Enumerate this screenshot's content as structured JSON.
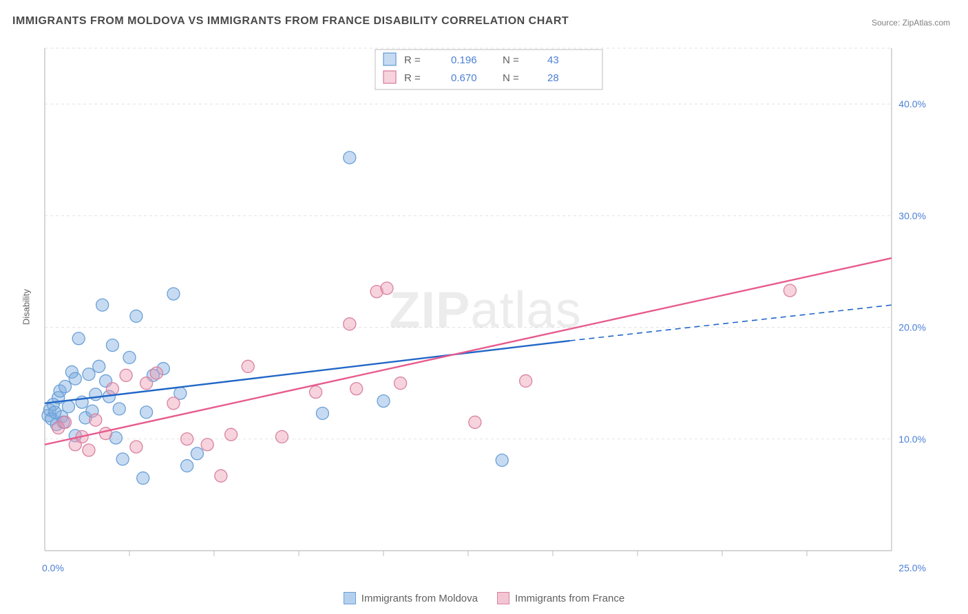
{
  "title": "IMMIGRANTS FROM MOLDOVA VS IMMIGRANTS FROM FRANCE DISABILITY CORRELATION CHART",
  "source_prefix": "Source: ",
  "source_name": "ZipAtlas.com",
  "ylabel": "Disability",
  "watermark_bold": "ZIP",
  "watermark_rest": "atlas",
  "chart": {
    "type": "scatter",
    "xlim": [
      0,
      25
    ],
    "ylim": [
      0,
      45
    ],
    "x_ticks": [
      0,
      25
    ],
    "x_tick_labels": [
      "0.0%",
      "25.0%"
    ],
    "x_minor_ticks": [
      2.5,
      5.0,
      7.5,
      10.0,
      12.5,
      15.0,
      17.5,
      20.0,
      22.5
    ],
    "y_ticks": [
      10,
      20,
      30,
      40
    ],
    "y_tick_labels": [
      "10.0%",
      "20.0%",
      "30.0%",
      "40.0%"
    ],
    "grid_color": "#e2e2e2",
    "axis_color": "#bdbdbd",
    "tick_label_color": "#4a7fd6",
    "tick_label_fontsize": 14,
    "background": "#ffffff",
    "marker_radius": 9,
    "marker_stroke_width": 1.3,
    "series": [
      {
        "name": "Immigrants from Moldova",
        "fill": "rgba(120,170,225,0.42)",
        "stroke": "#6a9fd6",
        "R": "0.196",
        "N": "43",
        "trend": {
          "x1": 0,
          "y1": 13.2,
          "x2": 15.5,
          "y2": 18.8,
          "color": "#2166c7",
          "width": 2.4,
          "ext_x2": 25,
          "ext_y2": 22.0,
          "ext_dash": "8,6"
        },
        "points": [
          [
            0.1,
            12.1
          ],
          [
            0.15,
            12.6
          ],
          [
            0.2,
            11.8
          ],
          [
            0.25,
            13.1
          ],
          [
            0.3,
            12.4
          ],
          [
            0.35,
            11.3
          ],
          [
            0.4,
            13.7
          ],
          [
            0.45,
            14.3
          ],
          [
            0.5,
            12.0
          ],
          [
            0.55,
            11.5
          ],
          [
            0.6,
            14.7
          ],
          [
            0.7,
            12.9
          ],
          [
            0.8,
            16.0
          ],
          [
            0.9,
            15.4
          ],
          [
            1.0,
            19.0
          ],
          [
            1.1,
            13.3
          ],
          [
            1.2,
            11.9
          ],
          [
            1.3,
            15.8
          ],
          [
            1.4,
            12.5
          ],
          [
            1.5,
            14.0
          ],
          [
            1.6,
            16.5
          ],
          [
            1.7,
            22.0
          ],
          [
            1.8,
            15.2
          ],
          [
            1.9,
            13.8
          ],
          [
            2.0,
            18.4
          ],
          [
            2.1,
            10.1
          ],
          [
            2.2,
            12.7
          ],
          [
            2.3,
            8.2
          ],
          [
            2.5,
            17.3
          ],
          [
            2.7,
            21.0
          ],
          [
            2.9,
            6.5
          ],
          [
            3.0,
            12.4
          ],
          [
            3.2,
            15.7
          ],
          [
            3.5,
            16.3
          ],
          [
            3.8,
            23.0
          ],
          [
            4.0,
            14.1
          ],
          [
            4.2,
            7.6
          ],
          [
            4.5,
            8.7
          ],
          [
            8.2,
            12.3
          ],
          [
            9.0,
            35.2
          ],
          [
            10.0,
            13.4
          ],
          [
            13.5,
            8.1
          ],
          [
            0.9,
            10.3
          ]
        ]
      },
      {
        "name": "Immigrants from France",
        "fill": "rgba(235,150,175,0.42)",
        "stroke": "#d881a0",
        "R": "0.670",
        "N": "28",
        "trend": {
          "x1": 0,
          "y1": 9.5,
          "x2": 25,
          "y2": 26.2,
          "color": "#e75a8d",
          "width": 2.4
        },
        "points": [
          [
            0.4,
            11.0
          ],
          [
            0.6,
            11.5
          ],
          [
            0.9,
            9.5
          ],
          [
            1.1,
            10.2
          ],
          [
            1.3,
            9.0
          ],
          [
            1.5,
            11.7
          ],
          [
            1.8,
            10.5
          ],
          [
            2.0,
            14.5
          ],
          [
            2.4,
            15.7
          ],
          [
            2.7,
            9.3
          ],
          [
            3.0,
            15.0
          ],
          [
            3.3,
            15.9
          ],
          [
            3.8,
            13.2
          ],
          [
            4.2,
            10.0
          ],
          [
            4.8,
            9.5
          ],
          [
            5.2,
            6.7
          ],
          [
            5.5,
            10.4
          ],
          [
            6.0,
            16.5
          ],
          [
            7.0,
            10.2
          ],
          [
            8.0,
            14.2
          ],
          [
            9.0,
            20.3
          ],
          [
            9.2,
            14.5
          ],
          [
            9.8,
            23.2
          ],
          [
            10.1,
            23.5
          ],
          [
            10.5,
            15.0
          ],
          [
            12.7,
            11.5
          ],
          [
            14.2,
            15.2
          ],
          [
            22.0,
            23.3
          ]
        ]
      }
    ],
    "stats_box": {
      "border_color": "#bcbcbc",
      "text_color_label": "#606060",
      "text_color_value": "#4a7fd6",
      "fontsize": 15,
      "R_label": "R  =",
      "N_label": "N  ="
    }
  },
  "bottom_legend": {
    "items": [
      {
        "label": "Immigrants from Moldova",
        "fill": "rgba(120,170,225,0.55)",
        "stroke": "#6a9fd6"
      },
      {
        "label": "Immigrants from France",
        "fill": "rgba(235,150,175,0.55)",
        "stroke": "#d881a0"
      }
    ]
  }
}
